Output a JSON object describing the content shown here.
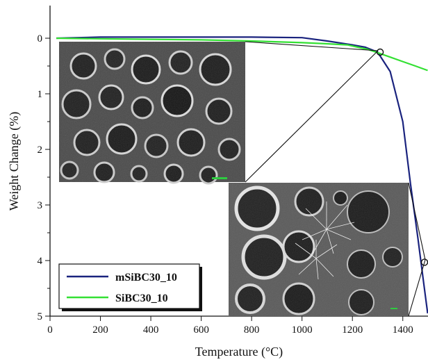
{
  "chart_data": {
    "type": "line",
    "xlabel": "Temperature (°C)",
    "ylabel": "Weight Change (%)",
    "xlim": [
      0,
      1500
    ],
    "ylim": [
      5,
      0
    ],
    "y_axis_inverted": true,
    "x_ticks": [
      0,
      200,
      400,
      600,
      800,
      1000,
      1200,
      1400
    ],
    "y_ticks": [
      0,
      1,
      2,
      3,
      4,
      5
    ],
    "y_tick_labels": [
      "0",
      "1",
      "2",
      "3",
      "4",
      "5"
    ],
    "grid": false,
    "legend_position": "bottom-left",
    "series": [
      {
        "name": "mSiBC30_10",
        "color": "#1a237e",
        "x": [
          25,
          200,
          400,
          600,
          800,
          1000,
          1100,
          1200,
          1250,
          1300,
          1350,
          1400,
          1430,
          1460,
          1480,
          1500
        ],
        "y": [
          0.0,
          -0.02,
          -0.02,
          -0.02,
          -0.02,
          -0.01,
          0.05,
          0.12,
          0.16,
          0.25,
          0.6,
          1.5,
          2.6,
          3.6,
          4.3,
          4.95
        ]
      },
      {
        "name": "SiBC30_10",
        "color": "#33e033",
        "x": [
          25,
          200,
          400,
          600,
          800,
          1000,
          1100,
          1180,
          1210,
          1260,
          1300,
          1350,
          1400,
          1450,
          1500
        ],
        "y": [
          0.0,
          0.01,
          0.02,
          0.03,
          0.05,
          0.08,
          0.1,
          0.12,
          0.15,
          0.2,
          0.26,
          0.34,
          0.42,
          0.5,
          0.58
        ]
      }
    ],
    "markers": [
      {
        "x": 1310,
        "y": 0.25
      },
      {
        "x": 1500,
        "y": 4.03
      }
    ]
  },
  "images": {
    "sem_top": "sem-micrograph-foam-low-magnification",
    "sem_bottom": "sem-micrograph-foam-with-whiskers"
  }
}
